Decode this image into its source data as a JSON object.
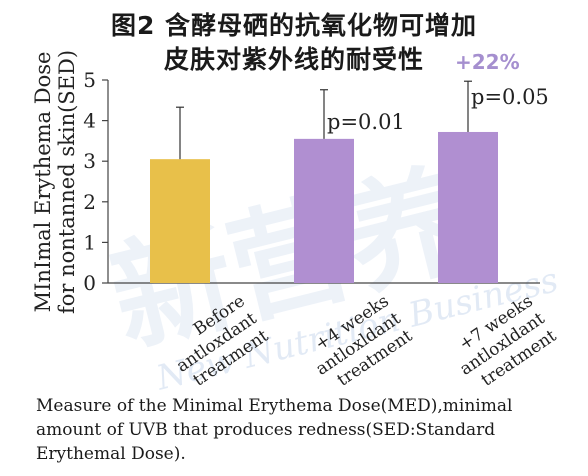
{
  "title_line1": "图2  含酵母硒的抗氧化物可增加",
  "title_line2": "皮肤对紫外线的耐受性",
  "increase_badge": "+22%",
  "caption": "Measure of the Minimal Erythema Dose(MED),minimal amount of UVB that produces redness(SED:Standard Erythemal Dose).",
  "watermark_text": "新营养 New Nutrition Business",
  "chart_data": {
    "type": "bar",
    "categories": [
      [
        "Before",
        "antloxdant",
        "treatment"
      ],
      [
        "+4 weeks",
        "antloxldant",
        "treatment"
      ],
      [
        "+7 weeks",
        "antloxldant",
        "treatment"
      ]
    ],
    "values": [
      3.05,
      3.55,
      3.72
    ],
    "error_upper": [
      4.33,
      4.76,
      4.97
    ],
    "bar_colors": [
      "#e8c04a",
      "#b08fd1",
      "#b08fd1"
    ],
    "annotations": [
      "",
      "p=0.01",
      "p=0.05"
    ],
    "ylabel_lines": [
      "MInImal Erythema Dose",
      "for nontanned skin(SED)"
    ],
    "ylim": [
      0,
      5
    ],
    "yticks": [
      0,
      1,
      2,
      3,
      4,
      5
    ],
    "grid": false
  }
}
